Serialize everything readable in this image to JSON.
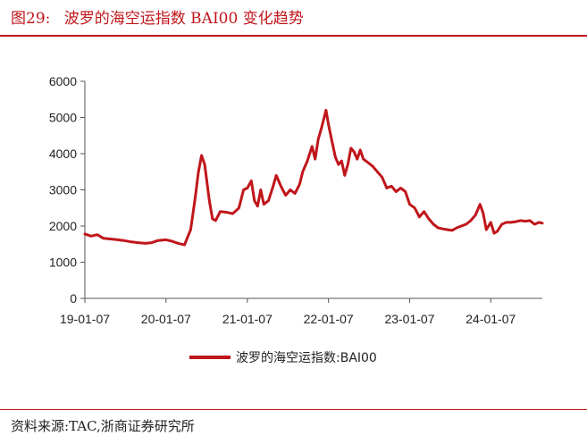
{
  "figure_label": "图29:",
  "figure_title": "波罗的海空运指数 BAI00 变化趋势",
  "source": "资料来源:TAC,浙商证券研究所",
  "colors": {
    "series": "#c0161b",
    "axis": "#555555",
    "accent": "#c0161b"
  },
  "chart_data": {
    "type": "line",
    "title": "波罗的海空运指数 BAI00 变化趋势",
    "xlabel": "",
    "ylabel": "",
    "ylim": [
      0,
      6000
    ],
    "yticks": [
      0,
      1000,
      2000,
      3000,
      4000,
      5000,
      6000
    ],
    "xlim": [
      "2019-01-07",
      "2024-08-26"
    ],
    "xticks": [
      "2019-01-07",
      "2020-01-07",
      "2021-01-07",
      "2022-01-07",
      "2023-01-07",
      "2024-01-07"
    ],
    "xtick_labels": [
      "19-01-07",
      "20-01-07",
      "21-01-07",
      "22-01-07",
      "23-01-07",
      "24-01-07"
    ],
    "grid": false,
    "legend_position": "bottom-center",
    "series": [
      {
        "name": "波罗的海空运指数:BAI00",
        "points": [
          [
            "2019-01-07",
            1780
          ],
          [
            "2019-02-04",
            1720
          ],
          [
            "2019-03-04",
            1760
          ],
          [
            "2019-04-01",
            1660
          ],
          [
            "2019-05-06",
            1640
          ],
          [
            "2019-06-03",
            1620
          ],
          [
            "2019-07-01",
            1600
          ],
          [
            "2019-08-05",
            1560
          ],
          [
            "2019-09-02",
            1540
          ],
          [
            "2019-10-07",
            1520
          ],
          [
            "2019-11-04",
            1540
          ],
          [
            "2019-12-02",
            1600
          ],
          [
            "2020-01-07",
            1620
          ],
          [
            "2020-02-03",
            1580
          ],
          [
            "2020-03-02",
            1520
          ],
          [
            "2020-03-30",
            1480
          ],
          [
            "2020-04-27",
            1900
          ],
          [
            "2020-05-18",
            2800
          ],
          [
            "2020-06-01",
            3500
          ],
          [
            "2020-06-15",
            3950
          ],
          [
            "2020-06-29",
            3700
          ],
          [
            "2020-07-20",
            2700
          ],
          [
            "2020-08-03",
            2200
          ],
          [
            "2020-08-17",
            2150
          ],
          [
            "2020-09-07",
            2400
          ],
          [
            "2020-10-05",
            2380
          ],
          [
            "2020-11-02",
            2340
          ],
          [
            "2020-11-30",
            2500
          ],
          [
            "2020-12-21",
            3000
          ],
          [
            "2021-01-07",
            3050
          ],
          [
            "2021-01-25",
            3250
          ],
          [
            "2021-02-08",
            2700
          ],
          [
            "2021-02-22",
            2550
          ],
          [
            "2021-03-08",
            3000
          ],
          [
            "2021-03-22",
            2600
          ],
          [
            "2021-04-12",
            2700
          ],
          [
            "2021-05-03",
            3100
          ],
          [
            "2021-05-17",
            3400
          ],
          [
            "2021-06-07",
            3100
          ],
          [
            "2021-06-28",
            2850
          ],
          [
            "2021-07-19",
            3000
          ],
          [
            "2021-08-09",
            2900
          ],
          [
            "2021-08-30",
            3150
          ],
          [
            "2021-09-13",
            3500
          ],
          [
            "2021-10-04",
            3800
          ],
          [
            "2021-10-25",
            4200
          ],
          [
            "2021-11-08",
            3850
          ],
          [
            "2021-11-22",
            4400
          ],
          [
            "2021-12-06",
            4700
          ],
          [
            "2021-12-27",
            5200
          ],
          [
            "2022-01-07",
            4800
          ],
          [
            "2022-01-24",
            4300
          ],
          [
            "2022-02-07",
            3900
          ],
          [
            "2022-02-21",
            3700
          ],
          [
            "2022-03-07",
            3800
          ],
          [
            "2022-03-21",
            3400
          ],
          [
            "2022-04-04",
            3700
          ],
          [
            "2022-04-18",
            4150
          ],
          [
            "2022-05-02",
            4050
          ],
          [
            "2022-05-16",
            3850
          ],
          [
            "2022-05-30",
            4100
          ],
          [
            "2022-06-13",
            3850
          ],
          [
            "2022-07-04",
            3750
          ],
          [
            "2022-07-25",
            3650
          ],
          [
            "2022-08-15",
            3500
          ],
          [
            "2022-09-05",
            3350
          ],
          [
            "2022-09-26",
            3050
          ],
          [
            "2022-10-17",
            3100
          ],
          [
            "2022-11-07",
            2950
          ],
          [
            "2022-11-28",
            3050
          ],
          [
            "2022-12-19",
            2950
          ],
          [
            "2023-01-07",
            2600
          ],
          [
            "2023-01-30",
            2500
          ],
          [
            "2023-02-20",
            2250
          ],
          [
            "2023-03-13",
            2400
          ],
          [
            "2023-04-03",
            2200
          ],
          [
            "2023-04-24",
            2050
          ],
          [
            "2023-05-15",
            1950
          ],
          [
            "2023-06-05",
            1920
          ],
          [
            "2023-06-26",
            1900
          ],
          [
            "2023-07-17",
            1880
          ],
          [
            "2023-08-07",
            1950
          ],
          [
            "2023-08-28",
            2000
          ],
          [
            "2023-09-18",
            2050
          ],
          [
            "2023-10-09",
            2150
          ],
          [
            "2023-10-30",
            2300
          ],
          [
            "2023-11-20",
            2600
          ],
          [
            "2023-12-04",
            2350
          ],
          [
            "2023-12-18",
            1900
          ],
          [
            "2024-01-07",
            2100
          ],
          [
            "2024-01-22",
            1800
          ],
          [
            "2024-02-05",
            1850
          ],
          [
            "2024-02-26",
            2050
          ],
          [
            "2024-03-18",
            2100
          ],
          [
            "2024-04-08",
            2100
          ],
          [
            "2024-04-29",
            2120
          ],
          [
            "2024-05-20",
            2150
          ],
          [
            "2024-06-10",
            2130
          ],
          [
            "2024-07-01",
            2150
          ],
          [
            "2024-07-22",
            2050
          ],
          [
            "2024-08-12",
            2100
          ],
          [
            "2024-08-26",
            2080
          ]
        ]
      }
    ]
  }
}
